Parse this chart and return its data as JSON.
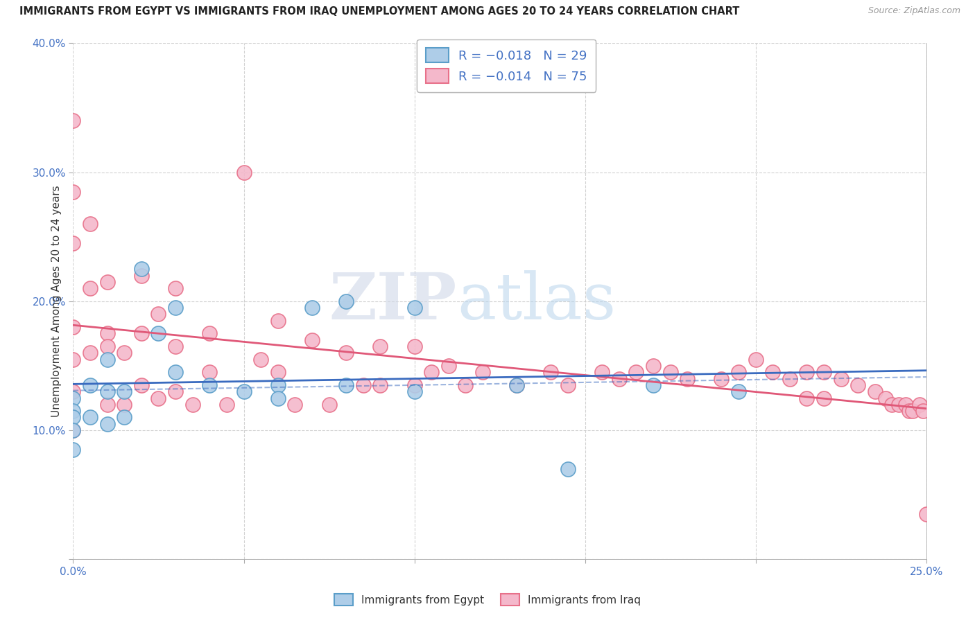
{
  "title": "IMMIGRANTS FROM EGYPT VS IMMIGRANTS FROM IRAQ UNEMPLOYMENT AMONG AGES 20 TO 24 YEARS CORRELATION CHART",
  "source": "Source: ZipAtlas.com",
  "ylabel": "Unemployment Among Ages 20 to 24 years",
  "xlim": [
    0.0,
    0.25
  ],
  "ylim": [
    0.0,
    0.4
  ],
  "xticks": [
    0.0,
    0.05,
    0.1,
    0.15,
    0.2,
    0.25
  ],
  "yticks": [
    0.0,
    0.1,
    0.2,
    0.3,
    0.4
  ],
  "xtick_labels": [
    "0.0%",
    "",
    "",
    "",
    "",
    "25.0%"
  ],
  "ytick_labels": [
    "",
    "10.0%",
    "20.0%",
    "30.0%",
    "40.0%"
  ],
  "egypt_color": "#aecde8",
  "iraq_color": "#f4b8cb",
  "egypt_edge": "#5b9ec9",
  "iraq_edge": "#e8718a",
  "trend_egypt_color": "#3a6bbf",
  "trend_iraq_color": "#e05878",
  "egypt_R": -0.018,
  "egypt_N": 29,
  "iraq_R": -0.014,
  "iraq_N": 75,
  "watermark_zip": "ZIP",
  "watermark_atlas": "atlas",
  "legend_R_color": "#4472c4",
  "legend_N_color": "#4472c4",
  "egypt_x": [
    0.0,
    0.0,
    0.0,
    0.0,
    0.0,
    0.005,
    0.005,
    0.01,
    0.01,
    0.01,
    0.015,
    0.015,
    0.02,
    0.025,
    0.03,
    0.03,
    0.04,
    0.05,
    0.06,
    0.06,
    0.07,
    0.08,
    0.08,
    0.1,
    0.1,
    0.13,
    0.145,
    0.17,
    0.195
  ],
  "egypt_y": [
    0.125,
    0.115,
    0.11,
    0.1,
    0.085,
    0.135,
    0.11,
    0.155,
    0.13,
    0.105,
    0.13,
    0.11,
    0.225,
    0.175,
    0.195,
    0.145,
    0.135,
    0.13,
    0.135,
    0.125,
    0.195,
    0.2,
    0.135,
    0.195,
    0.13,
    0.135,
    0.07,
    0.135,
    0.13
  ],
  "iraq_x": [
    0.0,
    0.0,
    0.0,
    0.0,
    0.0,
    0.0,
    0.0,
    0.005,
    0.005,
    0.005,
    0.01,
    0.01,
    0.01,
    0.01,
    0.015,
    0.015,
    0.02,
    0.02,
    0.02,
    0.025,
    0.025,
    0.03,
    0.03,
    0.03,
    0.035,
    0.04,
    0.04,
    0.045,
    0.05,
    0.055,
    0.06,
    0.06,
    0.065,
    0.07,
    0.075,
    0.08,
    0.085,
    0.09,
    0.09,
    0.1,
    0.1,
    0.105,
    0.11,
    0.115,
    0.12,
    0.13,
    0.14,
    0.145,
    0.155,
    0.16,
    0.165,
    0.17,
    0.175,
    0.18,
    0.19,
    0.195,
    0.2,
    0.205,
    0.21,
    0.215,
    0.215,
    0.22,
    0.22,
    0.225,
    0.23,
    0.235,
    0.238,
    0.24,
    0.242,
    0.244,
    0.245,
    0.246,
    0.248,
    0.249,
    0.25
  ],
  "iraq_y": [
    0.34,
    0.285,
    0.245,
    0.18,
    0.155,
    0.13,
    0.1,
    0.26,
    0.21,
    0.16,
    0.215,
    0.175,
    0.165,
    0.12,
    0.16,
    0.12,
    0.22,
    0.175,
    0.135,
    0.19,
    0.125,
    0.21,
    0.165,
    0.13,
    0.12,
    0.175,
    0.145,
    0.12,
    0.3,
    0.155,
    0.185,
    0.145,
    0.12,
    0.17,
    0.12,
    0.16,
    0.135,
    0.165,
    0.135,
    0.165,
    0.135,
    0.145,
    0.15,
    0.135,
    0.145,
    0.135,
    0.145,
    0.135,
    0.145,
    0.14,
    0.145,
    0.15,
    0.145,
    0.14,
    0.14,
    0.145,
    0.155,
    0.145,
    0.14,
    0.145,
    0.125,
    0.145,
    0.125,
    0.14,
    0.135,
    0.13,
    0.125,
    0.12,
    0.12,
    0.12,
    0.115,
    0.115,
    0.12,
    0.115,
    0.035
  ]
}
